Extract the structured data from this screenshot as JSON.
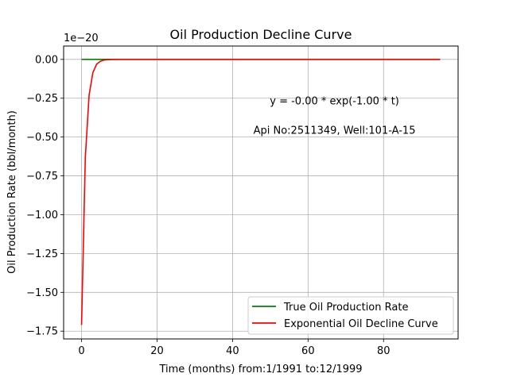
{
  "chart_data": {
    "type": "line",
    "title": "Oil Production Decline Curve",
    "xlabel": "Time (months) from:1/1991 to:12/1999",
    "ylabel": "Oil Production Rate (bbl/month)",
    "y_offset_text": "1e−20",
    "xlim": [
      -4.75,
      99.75
    ],
    "ylim": [
      -1.8,
      0.086
    ],
    "grid": true,
    "x_ticks": [
      {
        "value": 0,
        "label": "0"
      },
      {
        "value": 20,
        "label": "20"
      },
      {
        "value": 40,
        "label": "40"
      },
      {
        "value": 60,
        "label": "60"
      },
      {
        "value": 80,
        "label": "80"
      }
    ],
    "y_ticks": [
      {
        "value": 0.0,
        "label": "0.00"
      },
      {
        "value": -0.25,
        "label": "−0.25"
      },
      {
        "value": -0.5,
        "label": "−0.50"
      },
      {
        "value": -0.75,
        "label": "−0.75"
      },
      {
        "value": -1.0,
        "label": "−1.00"
      },
      {
        "value": -1.25,
        "label": "−1.25"
      },
      {
        "value": -1.5,
        "label": "−1.50"
      },
      {
        "value": -1.75,
        "label": "−1.75"
      }
    ],
    "annotations": [
      {
        "text": "y = -0.00 * exp(-1.00 * t)",
        "x": 67,
        "y": -0.29
      },
      {
        "text": "Api No:2511349, Well:101-A-15",
        "x": 67,
        "y": -0.48
      }
    ],
    "legend_position": "lower-right",
    "series": [
      {
        "name": "True Oil Production Rate",
        "color": "#008000",
        "x": [
          0,
          5,
          10,
          20,
          30,
          40,
          50,
          60,
          70,
          80,
          90,
          95
        ],
        "y": [
          0,
          0,
          0,
          0,
          0,
          0,
          0,
          0,
          0,
          0,
          0,
          0
        ]
      },
      {
        "name": "Exponential Oil Decline Curve",
        "color": "#ff0000",
        "x": [
          0,
          1,
          2,
          3,
          4,
          5,
          6,
          7,
          8,
          10,
          20,
          40,
          60,
          80,
          95
        ],
        "y": [
          -1.71,
          -0.63,
          -0.23,
          -0.085,
          -0.031,
          -0.0115,
          -0.0042,
          -0.0016,
          -0.0006,
          0,
          0,
          0,
          0,
          0,
          0
        ]
      }
    ]
  }
}
